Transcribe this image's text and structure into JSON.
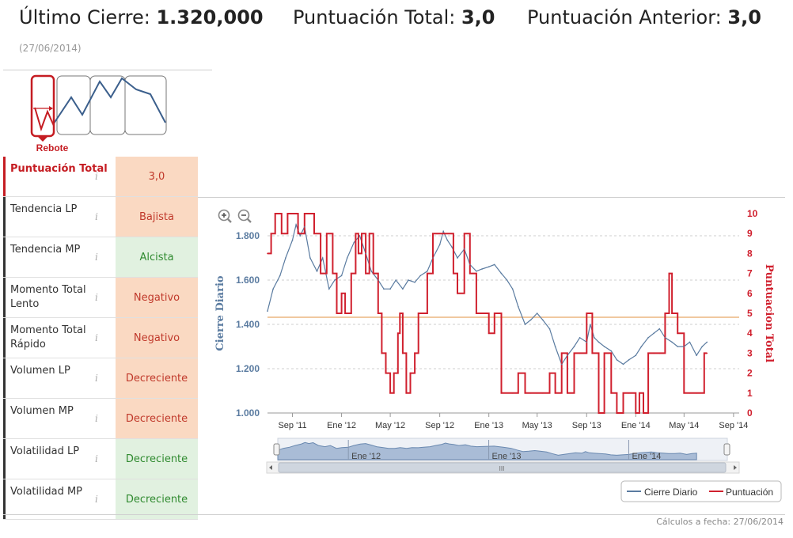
{
  "header": {
    "close_label": "Último Cierre: ",
    "close_value": "1.320,000",
    "total_label": "Puntuación Total: ",
    "total_value": "3,0",
    "prev_label": "Puntuación Anterior: ",
    "prev_value": "3,0",
    "date": "(27/06/2014)"
  },
  "pattern": {
    "label": "Rebote"
  },
  "table": {
    "rows": [
      {
        "label": "Puntuación Total",
        "value": "3,0",
        "kind": "total"
      },
      {
        "label": "Tendencia LP",
        "value": "Bajista",
        "kind": "neg"
      },
      {
        "label": "Tendencia MP",
        "value": "Alcista",
        "kind": "pos"
      },
      {
        "label": "Momento Total Lento",
        "value": "Negativo",
        "kind": "neg"
      },
      {
        "label": "Momento Total Rápido",
        "value": "Negativo",
        "kind": "neg"
      },
      {
        "label": "Volumen LP",
        "value": "Decreciente",
        "kind": "neg"
      },
      {
        "label": "Volumen MP",
        "value": "Decreciente",
        "kind": "neg"
      },
      {
        "label": "Volatilidad LP",
        "value": "Decreciente",
        "kind": "pos"
      },
      {
        "label": "Volatilidad MP",
        "value": "Decreciente",
        "kind": "pos"
      }
    ],
    "info_glyph": "i"
  },
  "navigator": {
    "labels": [
      "Ene '12",
      "Ene '13",
      "Ene '14"
    ],
    "scroll_glyph": "III"
  },
  "footer": {
    "calc_date": "Cálculos a fecha: 27/06/2014"
  },
  "chart_data": {
    "type": "line",
    "xlim": [
      "2011-07-01",
      "2014-09-15"
    ],
    "x_ticks": [
      {
        "date": "2011-09-01",
        "label": "Sep '11"
      },
      {
        "date": "2012-01-01",
        "label": "Ene '12"
      },
      {
        "date": "2012-05-01",
        "label": "May '12"
      },
      {
        "date": "2012-09-01",
        "label": "Sep '12"
      },
      {
        "date": "2013-01-01",
        "label": "Ene '13"
      },
      {
        "date": "2013-05-01",
        "label": "May '13"
      },
      {
        "date": "2013-09-01",
        "label": "Sep '13"
      },
      {
        "date": "2014-01-01",
        "label": "Ene '14"
      },
      {
        "date": "2014-05-01",
        "label": "May '14"
      },
      {
        "date": "2014-09-01",
        "label": "Sep '14"
      }
    ],
    "y_left": {
      "label": "Cierre Diario",
      "ylim": [
        1000,
        1900
      ],
      "ticks": [
        1000,
        1200,
        1400,
        1600,
        1800
      ],
      "tick_labels": [
        "1.000",
        "1.200",
        "1.400",
        "1.600",
        "1.800"
      ]
    },
    "y_right": {
      "label": "Puntuacion Total",
      "ylim": [
        0,
        10
      ],
      "ticks": [
        0,
        1,
        2,
        3,
        4,
        5,
        6,
        7,
        8,
        9,
        10
      ],
      "tick_labels": [
        "0",
        "1",
        "2",
        "3",
        "4",
        "5",
        "6",
        "7",
        "8",
        "9",
        "10"
      ]
    },
    "reference_line": {
      "axis": "right",
      "value": 4.8,
      "color": "#f0c8a0"
    },
    "grid": true,
    "legend": {
      "position": "bottom-right",
      "entries": [
        "Cierre Diario",
        "Puntuación"
      ]
    },
    "series": [
      {
        "name": "Cierre Diario",
        "axis": "left",
        "color": "#5a7ba0",
        "points": [
          [
            "2011-07-01",
            1460
          ],
          [
            "2011-07-15",
            1560
          ],
          [
            "2011-08-01",
            1620
          ],
          [
            "2011-08-15",
            1700
          ],
          [
            "2011-09-01",
            1780
          ],
          [
            "2011-09-10",
            1850
          ],
          [
            "2011-09-20",
            1800
          ],
          [
            "2011-10-01",
            1840
          ],
          [
            "2011-10-15",
            1700
          ],
          [
            "2011-11-01",
            1640
          ],
          [
            "2011-11-15",
            1700
          ],
          [
            "2011-12-01",
            1560
          ],
          [
            "2011-12-15",
            1600
          ],
          [
            "2012-01-01",
            1620
          ],
          [
            "2012-01-15",
            1700
          ],
          [
            "2012-02-01",
            1770
          ],
          [
            "2012-02-15",
            1800
          ],
          [
            "2012-03-01",
            1720
          ],
          [
            "2012-03-15",
            1640
          ],
          [
            "2012-04-01",
            1600
          ],
          [
            "2012-04-15",
            1560
          ],
          [
            "2012-05-01",
            1560
          ],
          [
            "2012-05-15",
            1600
          ],
          [
            "2012-06-01",
            1560
          ],
          [
            "2012-06-15",
            1600
          ],
          [
            "2012-07-01",
            1590
          ],
          [
            "2012-07-15",
            1620
          ],
          [
            "2012-08-01",
            1640
          ],
          [
            "2012-08-15",
            1700
          ],
          [
            "2012-09-01",
            1760
          ],
          [
            "2012-09-10",
            1820
          ],
          [
            "2012-09-20",
            1780
          ],
          [
            "2012-10-01",
            1750
          ],
          [
            "2012-10-15",
            1700
          ],
          [
            "2012-11-01",
            1740
          ],
          [
            "2012-11-15",
            1670
          ],
          [
            "2012-12-01",
            1640
          ],
          [
            "2012-12-15",
            1650
          ],
          [
            "2013-01-01",
            1660
          ],
          [
            "2013-01-15",
            1670
          ],
          [
            "2013-02-01",
            1630
          ],
          [
            "2013-02-15",
            1600
          ],
          [
            "2013-03-01",
            1560
          ],
          [
            "2013-03-15",
            1480
          ],
          [
            "2013-04-01",
            1400
          ],
          [
            "2013-04-15",
            1420
          ],
          [
            "2013-05-01",
            1450
          ],
          [
            "2013-05-15",
            1420
          ],
          [
            "2013-06-01",
            1380
          ],
          [
            "2013-06-15",
            1300
          ],
          [
            "2013-07-01",
            1220
          ],
          [
            "2013-07-15",
            1260
          ],
          [
            "2013-08-01",
            1300
          ],
          [
            "2013-08-15",
            1340
          ],
          [
            "2013-09-01",
            1320
          ],
          [
            "2013-09-10",
            1400
          ],
          [
            "2013-09-20",
            1340
          ],
          [
            "2013-10-01",
            1320
          ],
          [
            "2013-10-15",
            1300
          ],
          [
            "2013-11-01",
            1280
          ],
          [
            "2013-11-15",
            1240
          ],
          [
            "2013-12-01",
            1220
          ],
          [
            "2013-12-15",
            1240
          ],
          [
            "2014-01-01",
            1260
          ],
          [
            "2014-01-15",
            1300
          ],
          [
            "2014-02-01",
            1340
          ],
          [
            "2014-02-15",
            1360
          ],
          [
            "2014-03-01",
            1380
          ],
          [
            "2014-03-15",
            1340
          ],
          [
            "2014-04-01",
            1320
          ],
          [
            "2014-04-15",
            1300
          ],
          [
            "2014-05-01",
            1300
          ],
          [
            "2014-05-15",
            1320
          ],
          [
            "2014-06-01",
            1260
          ],
          [
            "2014-06-15",
            1300
          ],
          [
            "2014-06-27",
            1320
          ]
        ]
      },
      {
        "name": "Puntuación",
        "axis": "right",
        "color": "#d0202e",
        "step": true,
        "points": [
          [
            "2011-07-01",
            8
          ],
          [
            "2011-07-10",
            9
          ],
          [
            "2011-07-20",
            10
          ],
          [
            "2011-08-05",
            9
          ],
          [
            "2011-08-20",
            10
          ],
          [
            "2011-09-15",
            9
          ],
          [
            "2011-10-01",
            10
          ],
          [
            "2011-10-25",
            9
          ],
          [
            "2011-11-10",
            7
          ],
          [
            "2011-11-25",
            9
          ],
          [
            "2011-12-10",
            7
          ],
          [
            "2011-12-20",
            5
          ],
          [
            "2012-01-01",
            6
          ],
          [
            "2012-01-10",
            5
          ],
          [
            "2012-01-25",
            7
          ],
          [
            "2012-02-05",
            9
          ],
          [
            "2012-02-12",
            8
          ],
          [
            "2012-02-20",
            9
          ],
          [
            "2012-03-01",
            7
          ],
          [
            "2012-03-10",
            9
          ],
          [
            "2012-03-20",
            7
          ],
          [
            "2012-04-01",
            5
          ],
          [
            "2012-04-10",
            3
          ],
          [
            "2012-04-20",
            2
          ],
          [
            "2012-05-01",
            1
          ],
          [
            "2012-05-10",
            2
          ],
          [
            "2012-05-20",
            4
          ],
          [
            "2012-05-25",
            5
          ],
          [
            "2012-06-01",
            3
          ],
          [
            "2012-06-10",
            1
          ],
          [
            "2012-06-20",
            2
          ],
          [
            "2012-07-01",
            3
          ],
          [
            "2012-07-10",
            5
          ],
          [
            "2012-07-20",
            5
          ],
          [
            "2012-08-01",
            7
          ],
          [
            "2012-08-15",
            9
          ],
          [
            "2012-09-01",
            9
          ],
          [
            "2012-10-05",
            7
          ],
          [
            "2012-10-15",
            6
          ],
          [
            "2012-11-01",
            9
          ],
          [
            "2012-11-15",
            7
          ],
          [
            "2012-12-01",
            5
          ],
          [
            "2013-01-01",
            4
          ],
          [
            "2013-01-15",
            5
          ],
          [
            "2013-02-01",
            1
          ],
          [
            "2013-03-01",
            1
          ],
          [
            "2013-03-15",
            2
          ],
          [
            "2013-04-01",
            1
          ],
          [
            "2013-04-15",
            1
          ],
          [
            "2013-05-01",
            1
          ],
          [
            "2013-05-15",
            1
          ],
          [
            "2013-06-01",
            2
          ],
          [
            "2013-06-15",
            1
          ],
          [
            "2013-07-01",
            3
          ],
          [
            "2013-07-15",
            1
          ],
          [
            "2013-08-01",
            3
          ],
          [
            "2013-08-15",
            3
          ],
          [
            "2013-09-01",
            5
          ],
          [
            "2013-09-15",
            3
          ],
          [
            "2013-10-01",
            0
          ],
          [
            "2013-10-15",
            3
          ],
          [
            "2013-11-01",
            1
          ],
          [
            "2013-11-15",
            0
          ],
          [
            "2013-12-01",
            1
          ],
          [
            "2013-12-15",
            1
          ],
          [
            "2014-01-01",
            0
          ],
          [
            "2014-01-10",
            1
          ],
          [
            "2014-01-20",
            0
          ],
          [
            "2014-02-01",
            3
          ],
          [
            "2014-02-15",
            3
          ],
          [
            "2014-03-01",
            3
          ],
          [
            "2014-03-15",
            5
          ],
          [
            "2014-03-25",
            7
          ],
          [
            "2014-04-01",
            5
          ],
          [
            "2014-04-15",
            4
          ],
          [
            "2014-05-01",
            1
          ],
          [
            "2014-05-15",
            1
          ],
          [
            "2014-06-01",
            1
          ],
          [
            "2014-06-20",
            3
          ],
          [
            "2014-06-27",
            3
          ]
        ]
      }
    ]
  }
}
